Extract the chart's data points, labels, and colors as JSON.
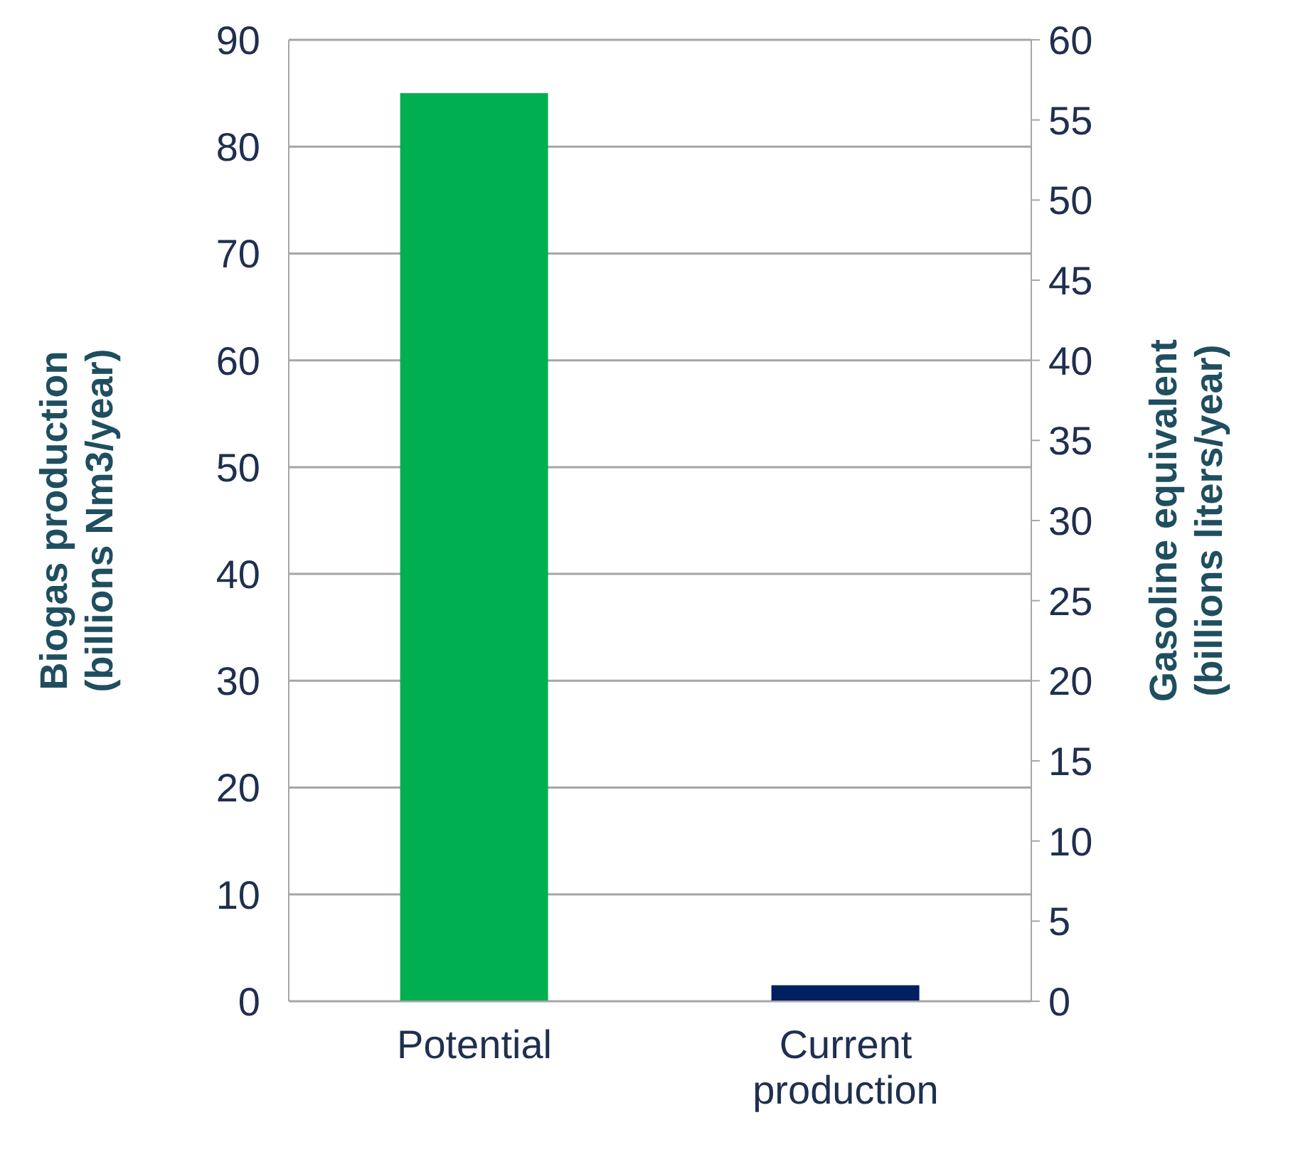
{
  "chart_data": {
    "type": "bar",
    "categories": [
      "Potential",
      "Current production"
    ],
    "values": [
      85,
      1.5
    ],
    "colors": [
      "#00b050",
      "#002060"
    ],
    "ylabel": "Biogas production (billions Nm3/year)",
    "y2label": "Gasoline equivalent (billions liters/year)",
    "ylim": [
      0,
      90
    ],
    "yticks": [
      0,
      10,
      20,
      30,
      40,
      50,
      60,
      70,
      80,
      90
    ],
    "y2lim": [
      0,
      60
    ],
    "y2ticks": [
      0,
      5,
      10,
      15,
      20,
      25,
      30,
      35,
      40,
      45,
      50,
      55,
      60
    ],
    "grid": "y",
    "legend": false
  }
}
